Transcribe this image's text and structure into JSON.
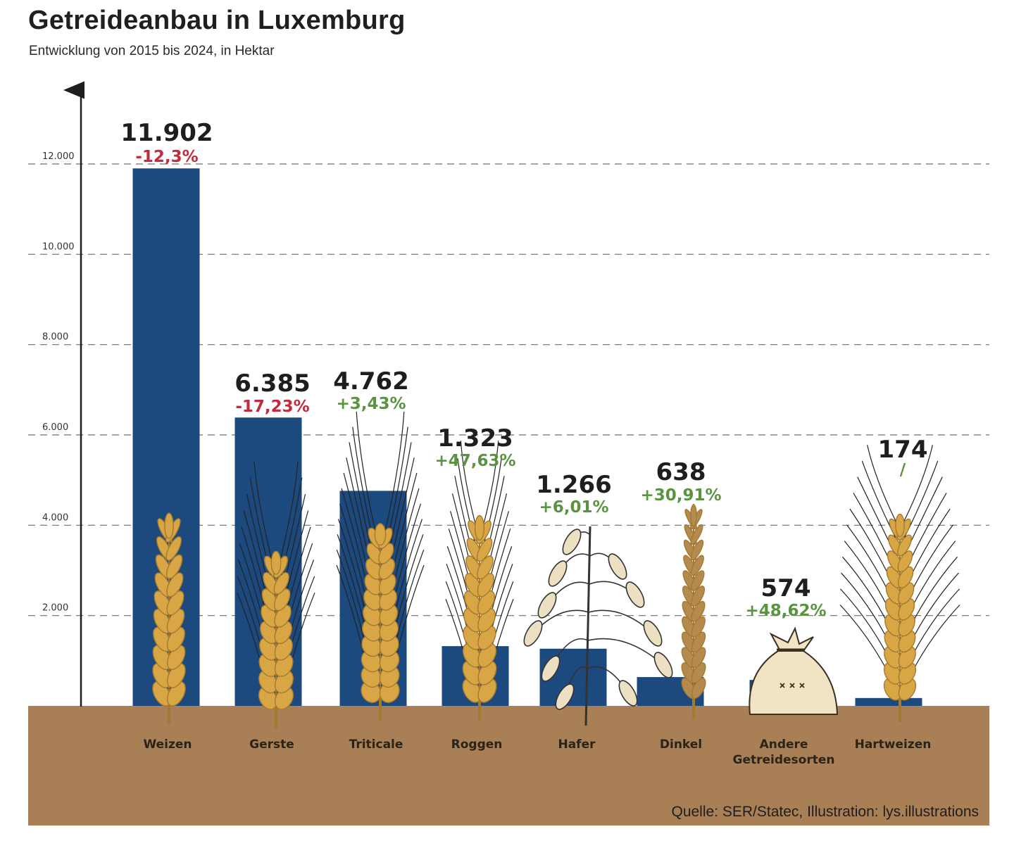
{
  "chart_data": {
    "type": "bar",
    "title": "Getreideanbau in Luxemburg",
    "subtitle": "Entwicklung von 2015 bis 2024, in Hektar",
    "categories": [
      "Weizen",
      "Gerste",
      "Triticale",
      "Roggen",
      "Hafer",
      "Dinkel",
      "Andere Getreidesorten",
      "Hartweizen"
    ],
    "values": [
      11902,
      6385,
      4762,
      1323,
      1266,
      638,
      574,
      174
    ],
    "value_labels": [
      "11.902",
      "6.385",
      "4.762",
      "1.323",
      "1.266",
      "638",
      "574",
      "174"
    ],
    "change_labels": [
      "-12,3%",
      "-17,23%",
      "+3,43%",
      "+47,63%",
      "+6,01%",
      "+30,91%",
      "+48,62%",
      "/"
    ],
    "change_direction": [
      "down",
      "down",
      "up",
      "up",
      "up",
      "up",
      "up",
      "none"
    ],
    "ylim": [
      0,
      12000
    ],
    "yticks": [
      2000,
      4000,
      6000,
      8000,
      10000,
      12000
    ],
    "ytick_labels": [
      "2.000",
      "4.000",
      "6.000",
      "8.000",
      "10.000",
      "12.000"
    ],
    "grid": true,
    "source": "Quelle: SER/Statec, Illustration: lys.illustrations",
    "colors": {
      "bar": "#1c4a7e",
      "ground": "#a97f55",
      "negative": "#c22a3e",
      "positive": "#5a9440",
      "grain": "#d8a645",
      "grain_dark": "#a37a2f",
      "sack": "#f1e3c4"
    },
    "illustrations": [
      "wheat-ear-icon",
      "barley-ear-icon",
      "triticale-ear-icon",
      "rye-ear-icon",
      "oat-plant-icon",
      "spelt-ear-icon",
      "grain-sack-icon",
      "durum-wheat-ear-icon"
    ]
  }
}
